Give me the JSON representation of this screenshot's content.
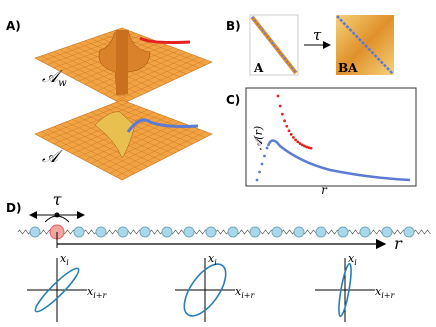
{
  "panels": {
    "a": {
      "label": "A)",
      "top_surface_label": "𝒜",
      "top_surface_subscript": "w",
      "bottom_surface_label": "𝒜"
    },
    "b": {
      "label": "B)",
      "matrix_left": "A",
      "arrow_label": "τ",
      "matrix_right": "BA"
    },
    "c": {
      "label": "C)",
      "y_axis_label": "𝒜(r)",
      "x_axis_label": "r"
    },
    "d": {
      "label": "D)",
      "shift_label": "τ",
      "distance_label": "r",
      "phase_plots": [
        {
          "y_label": "x",
          "y_sub": "i",
          "x_label": "x",
          "x_sub": "i+r"
        },
        {
          "y_label": "x",
          "y_sub": "i",
          "x_label": "x",
          "x_sub": "i+r"
        },
        {
          "y_label": "x",
          "y_sub": "i",
          "x_label": "x",
          "x_sub": "i+r"
        }
      ]
    }
  }
}
